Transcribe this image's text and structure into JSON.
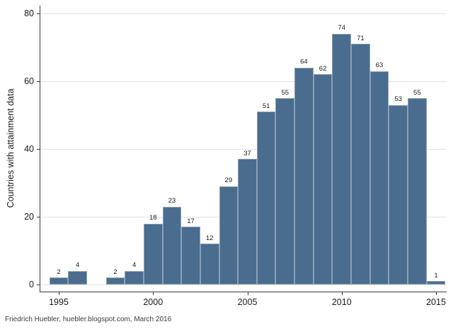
{
  "chart_data": {
    "type": "bar",
    "title": "",
    "ylabel": "Countries with attainment data",
    "xlabel": "",
    "x": [
      1995,
      1996,
      1997,
      1998,
      1999,
      2000,
      2001,
      2002,
      2003,
      2004,
      2005,
      2006,
      2007,
      2008,
      2009,
      2010,
      2011,
      2012,
      2013,
      2014,
      2015
    ],
    "values": [
      2,
      4,
      0,
      2,
      4,
      18,
      23,
      17,
      12,
      29,
      37,
      51,
      55,
      64,
      62,
      74,
      71,
      63,
      53,
      55,
      1
    ],
    "ylim": [
      0,
      80
    ],
    "yticks": [
      0,
      20,
      40,
      60,
      80
    ],
    "xticks": [
      1995,
      2000,
      2005,
      2010,
      2015
    ],
    "grid": "horizontal",
    "legend": "none",
    "bar_color": "#4a6c8f",
    "bar_outline_color": "#8ba1b6",
    "gridline_color": "#e2e2e2",
    "axis_color": "#3a3a3a",
    "value_labels": true
  },
  "footer": {
    "note": "Friedrich Huebler, huebler.blogspot.com, March 2016"
  }
}
